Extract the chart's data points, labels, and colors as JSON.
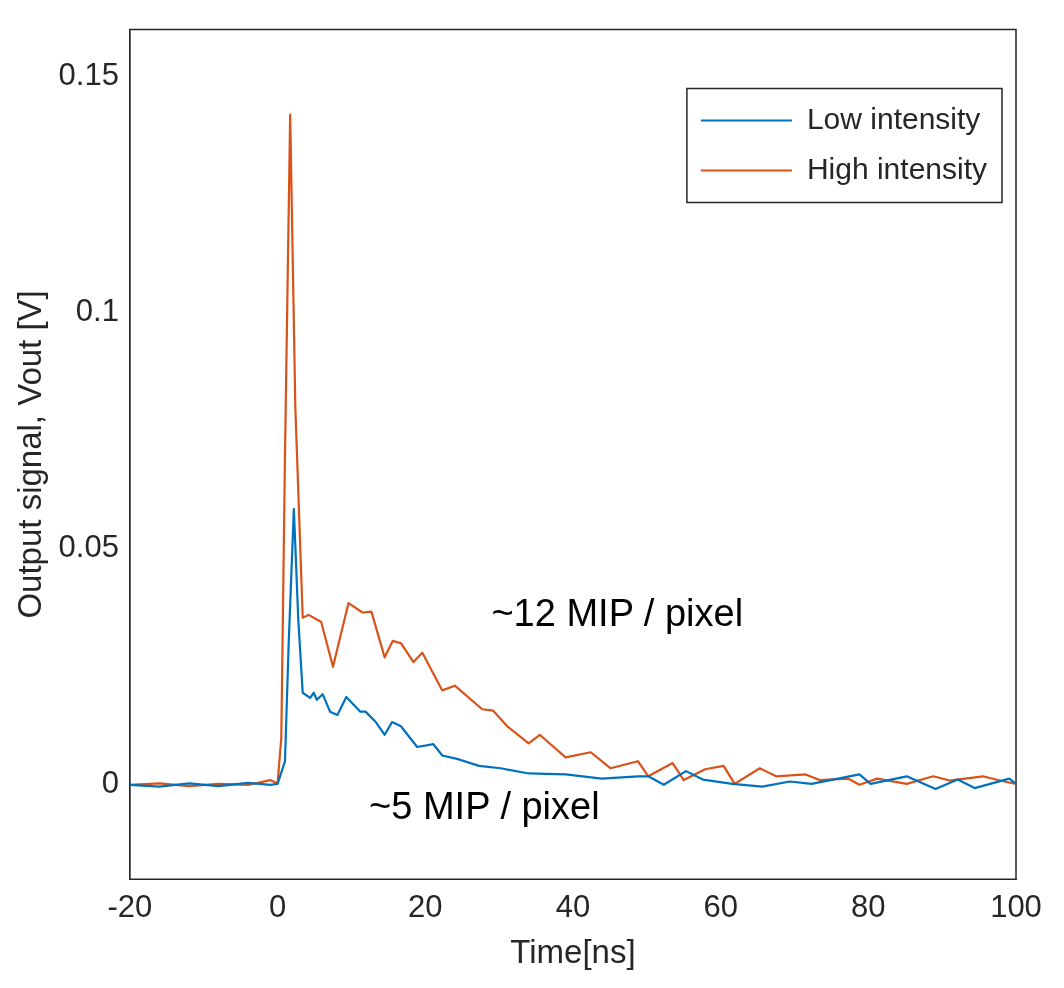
{
  "chart_data": {
    "type": "line",
    "xlabel": "Time[ns]",
    "ylabel": "Output signal, Vout [V]",
    "xlim": [
      -20,
      100
    ],
    "ylim": [
      -0.02,
      0.16
    ],
    "xticks": [
      -20,
      0,
      20,
      40,
      60,
      80,
      100
    ],
    "yticks": [
      0,
      0.05,
      0.1,
      0.15
    ],
    "grid": false,
    "legend": "top right",
    "marker": "none",
    "line_style": "solid",
    "series": [
      {
        "name": "Low intensity",
        "color": "#0072bd",
        "x": [
          -20,
          -16,
          -12,
          -8,
          -4,
          -1,
          0,
          1,
          1.5,
          2.2,
          2.8,
          3.4,
          4.4,
          4.9,
          5.3,
          6.1,
          7.1,
          8.1,
          9.3,
          11.2,
          11.9,
          13.3,
          14.5,
          15.5,
          16.7,
          18.9,
          21.1,
          22.3,
          24.3,
          27.3,
          30.2,
          34,
          39,
          43.9,
          48.8,
          50.2,
          52.3,
          55.3,
          57.6,
          61.6,
          65.6,
          69.4,
          72.3,
          78.8,
          80.3,
          85.2,
          89.1,
          92.1,
          94.4,
          99.1,
          100
        ],
        "values": [
          0,
          -0.0004,
          0.0003,
          -0.0003,
          0.0004,
          0,
          0.0002,
          0.005,
          0.03,
          0.0584,
          0.035,
          0.0195,
          0.0184,
          0.0195,
          0.018,
          0.0192,
          0.0155,
          0.0148,
          0.0186,
          0.0155,
          0.0155,
          0.0133,
          0.0106,
          0.0133,
          0.0124,
          0.008,
          0.0086,
          0.0062,
          0.0055,
          0.004,
          0.0035,
          0.0024,
          0.0022,
          0.0013,
          0.0018,
          0.0018,
          0,
          0.0029,
          0.0011,
          0.0002,
          -0.0004,
          0.0007,
          0.0002,
          0.0022,
          0.0002,
          0.0018,
          -0.0009,
          0.0011,
          -0.0007,
          0.0013,
          0.0002
        ]
      },
      {
        "name": "High intensity",
        "color": "#d95319",
        "x": [
          -20,
          -16,
          -12,
          -8,
          -4,
          -1,
          0,
          0.5,
          1,
          1.7,
          2.4,
          3.4,
          4.2,
          5.9,
          7.5,
          9.6,
          11.5,
          12.7,
          14.5,
          15.6,
          16.7,
          18.4,
          19.6,
          22.3,
          24,
          27.7,
          29.2,
          31.1,
          34,
          35.5,
          39,
          42.4,
          45.1,
          48.8,
          50.2,
          53.5,
          55,
          57.9,
          60.4,
          61.9,
          65.3,
          67.5,
          71.5,
          73.4,
          77.3,
          78.8,
          81.2,
          85.2,
          88.8,
          91,
          95.5,
          98.4,
          100
        ],
        "values": [
          0,
          0.0003,
          -0.0003,
          0.0002,
          0,
          0.001,
          0.0003,
          0.01,
          0.07,
          0.142,
          0.08,
          0.0354,
          0.036,
          0.0345,
          0.025,
          0.0385,
          0.0365,
          0.0367,
          0.027,
          0.0305,
          0.03,
          0.026,
          0.028,
          0.02,
          0.021,
          0.016,
          0.0157,
          0.0124,
          0.0088,
          0.0106,
          0.0058,
          0.0069,
          0.0035,
          0.005,
          0.0018,
          0.0046,
          0.001,
          0.0033,
          0.004,
          0.0002,
          0.0035,
          0.0018,
          0.0022,
          0.001,
          0.0013,
          0,
          0.0013,
          0.0002,
          0.0018,
          0.0009,
          0.0018,
          0.0007,
          0.0002
        ]
      }
    ],
    "annotations": [
      "~12 MIP / pixel",
      "~5 MIP / pixel"
    ]
  }
}
